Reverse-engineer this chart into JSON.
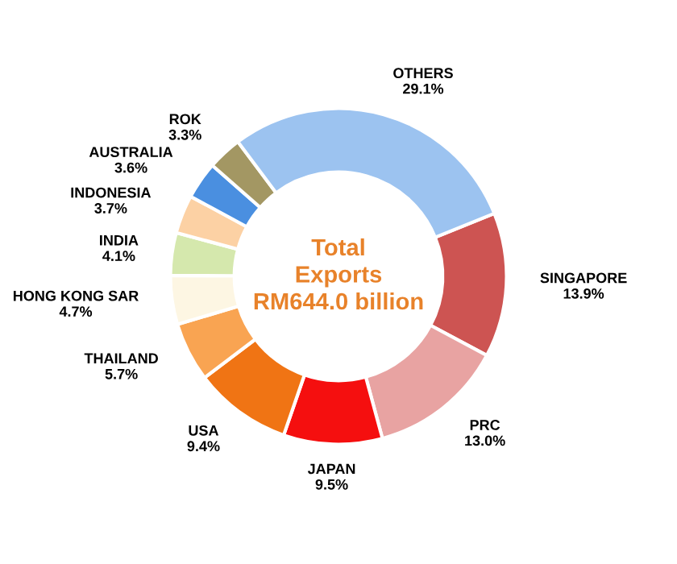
{
  "chart_data": {
    "type": "donut",
    "categories": [
      "SINGAPORE",
      "PRC",
      "JAPAN",
      "USA",
      "THAILAND",
      "HONG KONG SAR",
      "INDIA",
      "INDONESIA",
      "AUSTRALIA",
      "ROK",
      "OTHERS"
    ],
    "values": [
      13.9,
      13.0,
      9.5,
      9.4,
      5.7,
      4.7,
      4.1,
      3.7,
      3.6,
      3.3,
      29.1
    ],
    "value_labels": [
      "13.9%",
      "13.0%",
      "9.5%",
      "9.4%",
      "5.7%",
      "4.7%",
      "4.1%",
      "3.7%",
      "3.6%",
      "3.3%",
      "29.1%"
    ],
    "colors": [
      "#cd5452",
      "#e8a3a2",
      "#f50f0f",
      "#f07414",
      "#f9a452",
      "#fdf6e3",
      "#d5e8ad",
      "#fcd1a4",
      "#4a8fe0",
      "#a39763",
      "#9cc3f0"
    ],
    "annotations": [
      "Total\nExports\nRM644.0 billion"
    ]
  }
}
